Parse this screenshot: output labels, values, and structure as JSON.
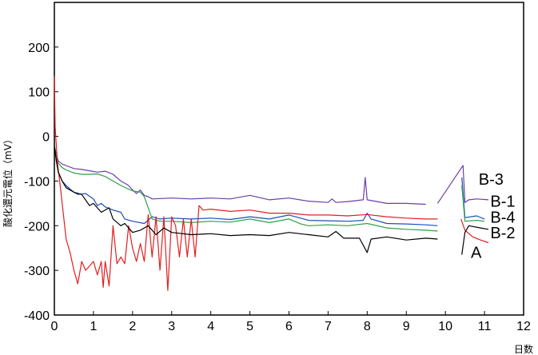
{
  "chart_data": {
    "type": "line",
    "ylabel": "酸化還元電位（mV）",
    "xlabel": "日数",
    "xlim": [
      0,
      12
    ],
    "ylim": [
      -400,
      300
    ],
    "xticks": [
      0,
      1,
      2,
      3,
      4,
      5,
      6,
      7,
      8,
      9,
      10,
      11,
      12
    ],
    "yticks": [
      -400,
      -300,
      -200,
      -100,
      0,
      100,
      200
    ],
    "grid": false,
    "series": [
      {
        "name": "B-3",
        "color": "#6a3fa8",
        "points": [
          [
            0,
            -20
          ],
          [
            0.05,
            -40
          ],
          [
            0.1,
            -55
          ],
          [
            0.2,
            -62
          ],
          [
            0.35,
            -67
          ],
          [
            0.5,
            -72
          ],
          [
            0.7,
            -74
          ],
          [
            0.9,
            -77
          ],
          [
            1.1,
            -80
          ],
          [
            1.3,
            -78
          ],
          [
            1.5,
            -85
          ],
          [
            1.7,
            -100
          ],
          [
            1.9,
            -110
          ],
          [
            2.0,
            -120
          ],
          [
            2.1,
            -128
          ],
          [
            2.2,
            -120
          ],
          [
            2.3,
            -132
          ],
          [
            2.4,
            -135
          ],
          [
            2.5,
            -140
          ],
          [
            3.0,
            -138
          ],
          [
            3.5,
            -140
          ],
          [
            4.0,
            -138
          ],
          [
            4.5,
            -140
          ],
          [
            5.0,
            -132
          ],
          [
            5.5,
            -142
          ],
          [
            6.0,
            -138
          ],
          [
            6.5,
            -145
          ],
          [
            7.0,
            -148
          ],
          [
            7.1,
            -140
          ],
          [
            7.2,
            -148
          ],
          [
            7.5,
            -146
          ],
          [
            7.9,
            -142
          ],
          [
            7.95,
            -92
          ],
          [
            8.0,
            -142
          ],
          [
            8.5,
            -150
          ],
          [
            9.0,
            -150
          ],
          [
            9.5,
            -152
          ],
          [
            9.8,
            -150
          ],
          [
            10.45,
            -65
          ],
          [
            10.5,
            -148
          ],
          [
            10.6,
            -142
          ],
          [
            10.8,
            -140
          ],
          [
            11.1,
            -142
          ]
        ],
        "segments": [
          [
            0,
            36
          ],
          [
            37,
            42
          ]
        ]
      },
      {
        "name": "B-1",
        "color": "#1a4fb8",
        "points": [
          [
            0,
            -20
          ],
          [
            0.05,
            -50
          ],
          [
            0.1,
            -80
          ],
          [
            0.2,
            -100
          ],
          [
            0.3,
            -110
          ],
          [
            0.4,
            -118
          ],
          [
            0.5,
            -125
          ],
          [
            0.6,
            -130
          ],
          [
            0.8,
            -128
          ],
          [
            1.0,
            -140
          ],
          [
            1.1,
            -155
          ],
          [
            1.2,
            -150
          ],
          [
            1.3,
            -158
          ],
          [
            1.5,
            -165
          ],
          [
            1.7,
            -170
          ],
          [
            1.8,
            -185
          ],
          [
            2.0,
            -190
          ],
          [
            2.3,
            -195
          ],
          [
            2.5,
            -180
          ],
          [
            2.7,
            -185
          ],
          [
            3.0,
            -183
          ],
          [
            3.5,
            -185
          ],
          [
            4.0,
            -183
          ],
          [
            4.5,
            -186
          ],
          [
            5.0,
            -180
          ],
          [
            5.5,
            -185
          ],
          [
            6.0,
            -176
          ],
          [
            6.3,
            -183
          ],
          [
            6.5,
            -188
          ],
          [
            7.0,
            -189
          ],
          [
            7.5,
            -190
          ],
          [
            7.9,
            -188
          ],
          [
            8.0,
            -172
          ],
          [
            8.1,
            -185
          ],
          [
            8.5,
            -195
          ],
          [
            9.0,
            -196
          ],
          [
            9.5,
            -198
          ],
          [
            9.8,
            -200
          ],
          [
            10.42,
            -92
          ],
          [
            10.5,
            -182
          ],
          [
            10.8,
            -178
          ],
          [
            11.0,
            -185
          ]
        ],
        "segments": [
          [
            0,
            37
          ],
          [
            38,
            41
          ]
        ]
      },
      {
        "name": "B-4",
        "color": "#2aa14a",
        "points": [
          [
            0,
            -20
          ],
          [
            0.05,
            -45
          ],
          [
            0.1,
            -60
          ],
          [
            0.2,
            -70
          ],
          [
            0.3,
            -75
          ],
          [
            0.5,
            -82
          ],
          [
            0.7,
            -85
          ],
          [
            0.9,
            -85
          ],
          [
            1.1,
            -84
          ],
          [
            1.3,
            -90
          ],
          [
            1.5,
            -100
          ],
          [
            1.7,
            -110
          ],
          [
            1.9,
            -118
          ],
          [
            2.0,
            -122
          ],
          [
            2.2,
            -125
          ],
          [
            2.3,
            -135
          ],
          [
            2.4,
            -160
          ],
          [
            2.5,
            -185
          ],
          [
            2.7,
            -190
          ],
          [
            3.0,
            -190
          ],
          [
            3.5,
            -193
          ],
          [
            4.0,
            -190
          ],
          [
            4.5,
            -192
          ],
          [
            5.0,
            -185
          ],
          [
            5.5,
            -193
          ],
          [
            6.0,
            -185
          ],
          [
            6.3,
            -196
          ],
          [
            6.5,
            -200
          ],
          [
            7.0,
            -198
          ],
          [
            7.5,
            -200
          ],
          [
            8.0,
            -195
          ],
          [
            8.5,
            -205
          ],
          [
            9.0,
            -208
          ],
          [
            9.5,
            -210
          ],
          [
            9.8,
            -212
          ],
          [
            10.42,
            -110
          ],
          [
            10.5,
            -190
          ],
          [
            10.8,
            -188
          ],
          [
            11.0,
            -190
          ]
        ],
        "segments": [
          [
            0,
            34
          ],
          [
            35,
            38
          ]
        ]
      },
      {
        "name": "B-2",
        "color": "#e02020",
        "points": [
          [
            0,
            135
          ],
          [
            0.02,
            20
          ],
          [
            0.08,
            -60
          ],
          [
            0.15,
            -110
          ],
          [
            0.2,
            -150
          ],
          [
            0.3,
            -230
          ],
          [
            0.4,
            -260
          ],
          [
            0.5,
            -300
          ],
          [
            0.6,
            -330
          ],
          [
            0.7,
            -280
          ],
          [
            0.8,
            -300
          ],
          [
            0.9,
            -290
          ],
          [
            1.0,
            -280
          ],
          [
            1.1,
            -310
          ],
          [
            1.2,
            -280
          ],
          [
            1.25,
            -338
          ],
          [
            1.3,
            -280
          ],
          [
            1.4,
            -335
          ],
          [
            1.5,
            -200
          ],
          [
            1.6,
            -285
          ],
          [
            1.7,
            -270
          ],
          [
            1.8,
            -285
          ],
          [
            1.9,
            -200
          ],
          [
            2.0,
            -250
          ],
          [
            2.1,
            -280
          ],
          [
            2.2,
            -240
          ],
          [
            2.3,
            -280
          ],
          [
            2.4,
            -175
          ],
          [
            2.5,
            -270
          ],
          [
            2.6,
            -180
          ],
          [
            2.7,
            -300
          ],
          [
            2.8,
            -180
          ],
          [
            2.9,
            -345
          ],
          [
            3.0,
            -180
          ],
          [
            3.1,
            -200
          ],
          [
            3.2,
            -270
          ],
          [
            3.3,
            -185
          ],
          [
            3.4,
            -270
          ],
          [
            3.5,
            -185
          ],
          [
            3.6,
            -270
          ],
          [
            3.7,
            -155
          ],
          [
            3.8,
            -165
          ],
          [
            4.0,
            -163
          ],
          [
            4.5,
            -168
          ],
          [
            5.0,
            -165
          ],
          [
            5.5,
            -172
          ],
          [
            6.0,
            -172
          ],
          [
            6.5,
            -176
          ],
          [
            7.0,
            -176
          ],
          [
            7.5,
            -178
          ],
          [
            8.0,
            -175
          ],
          [
            8.5,
            -180
          ],
          [
            9.0,
            -183
          ],
          [
            9.5,
            -185
          ],
          [
            9.8,
            -185
          ],
          [
            10.4,
            -185
          ],
          [
            10.5,
            -210
          ],
          [
            10.7,
            -225
          ],
          [
            10.9,
            -232
          ],
          [
            11.1,
            -238
          ]
        ],
        "segments": [
          [
            0,
            54
          ],
          [
            55,
            59
          ]
        ]
      },
      {
        "name": "A",
        "color": "#000000",
        "points": [
          [
            0,
            -20
          ],
          [
            0.05,
            -55
          ],
          [
            0.1,
            -80
          ],
          [
            0.2,
            -100
          ],
          [
            0.3,
            -115
          ],
          [
            0.5,
            -125
          ],
          [
            0.7,
            -130
          ],
          [
            0.9,
            -155
          ],
          [
            1.0,
            -150
          ],
          [
            1.2,
            -170
          ],
          [
            1.4,
            -160
          ],
          [
            1.5,
            -185
          ],
          [
            1.7,
            -200
          ],
          [
            1.8,
            -195
          ],
          [
            2.0,
            -215
          ],
          [
            2.2,
            -210
          ],
          [
            2.4,
            -200
          ],
          [
            2.6,
            -220
          ],
          [
            2.8,
            -205
          ],
          [
            3.0,
            -215
          ],
          [
            3.5,
            -220
          ],
          [
            4.0,
            -218
          ],
          [
            4.5,
            -222
          ],
          [
            5.0,
            -220
          ],
          [
            5.5,
            -222
          ],
          [
            6.0,
            -215
          ],
          [
            6.5,
            -220
          ],
          [
            7.0,
            -225
          ],
          [
            7.2,
            -213
          ],
          [
            7.4,
            -228
          ],
          [
            7.8,
            -228
          ],
          [
            8.0,
            -260
          ],
          [
            8.1,
            -230
          ],
          [
            8.5,
            -225
          ],
          [
            9.0,
            -232
          ],
          [
            9.5,
            -228
          ],
          [
            9.8,
            -230
          ],
          [
            10.42,
            -265
          ],
          [
            10.5,
            -215
          ],
          [
            10.6,
            -200
          ],
          [
            10.9,
            -205
          ],
          [
            11.1,
            -208
          ]
        ],
        "segments": [
          [
            0,
            36
          ],
          [
            37,
            41
          ]
        ]
      }
    ],
    "series_labels": [
      {
        "text": "B-3",
        "x": 10.85,
        "y": -108
      },
      {
        "text": "B-1",
        "x": 11.15,
        "y": -157
      },
      {
        "text": "B-4",
        "x": 11.15,
        "y": -193
      },
      {
        "text": "B-2",
        "x": 11.15,
        "y": -228
      },
      {
        "text": "A",
        "x": 10.65,
        "y": -272
      }
    ]
  }
}
